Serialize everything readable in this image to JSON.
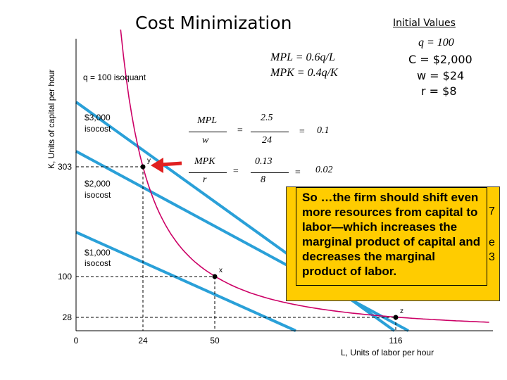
{
  "title": "Cost Minimization",
  "initial_values": {
    "heading": "Initial Values",
    "q": "q = 100",
    "C": "C = $2,000",
    "w": "w = $24",
    "r": "r = $8"
  },
  "mp_formulas": {
    "mpl": "MPL = 0.6q/L",
    "mpk": "MPK = 0.4q/K"
  },
  "ratios": {
    "mpl_num": "MPL",
    "mpl_den": "w",
    "mpl_mid_num": "2.5",
    "mpl_mid_den": "24",
    "mpl_result": "0.1",
    "mpk_num": "MPK",
    "mpk_den": "r",
    "mpk_mid_num": "0.13",
    "mpk_mid_den": "8",
    "mpk_result": "0.02",
    "eq": "="
  },
  "callout": {
    "text": "So …the firm should shift even more resources from capital to labor—which increases the marginal product of capital and decreases the marginal product of labor.",
    "edge_fragments": [
      "7",
      "e",
      "3"
    ]
  },
  "chart_data": {
    "type": "line",
    "xlabel": "L, Units of labor per hour",
    "ylabel": "K, Units of capital per hour",
    "x_ticks": [
      0,
      24,
      50,
      116
    ],
    "y_ticks": [
      28,
      100,
      303
    ],
    "isoquant": {
      "label": "q = 100 isoquant",
      "points": [
        [
          24,
          303
        ],
        [
          50,
          100
        ],
        [
          116,
          28
        ]
      ]
    },
    "isocosts": [
      {
        "label_value": "$1,000",
        "label_word": "isocost",
        "cost": 1000
      },
      {
        "label_value": "$2,000",
        "label_word": "isocost",
        "cost": 2000
      },
      {
        "label_value": "$3,000",
        "label_word": "isocost",
        "cost": 3000
      }
    ],
    "points": [
      {
        "name": "y",
        "L": 24,
        "K": 303
      },
      {
        "name": "x",
        "L": 50,
        "K": 100
      },
      {
        "name": "z",
        "L": 116,
        "K": 28
      }
    ],
    "colors": {
      "isoquant": "#cc0066",
      "isocost": "#2aa0d8",
      "arrow": "#e02020"
    }
  }
}
